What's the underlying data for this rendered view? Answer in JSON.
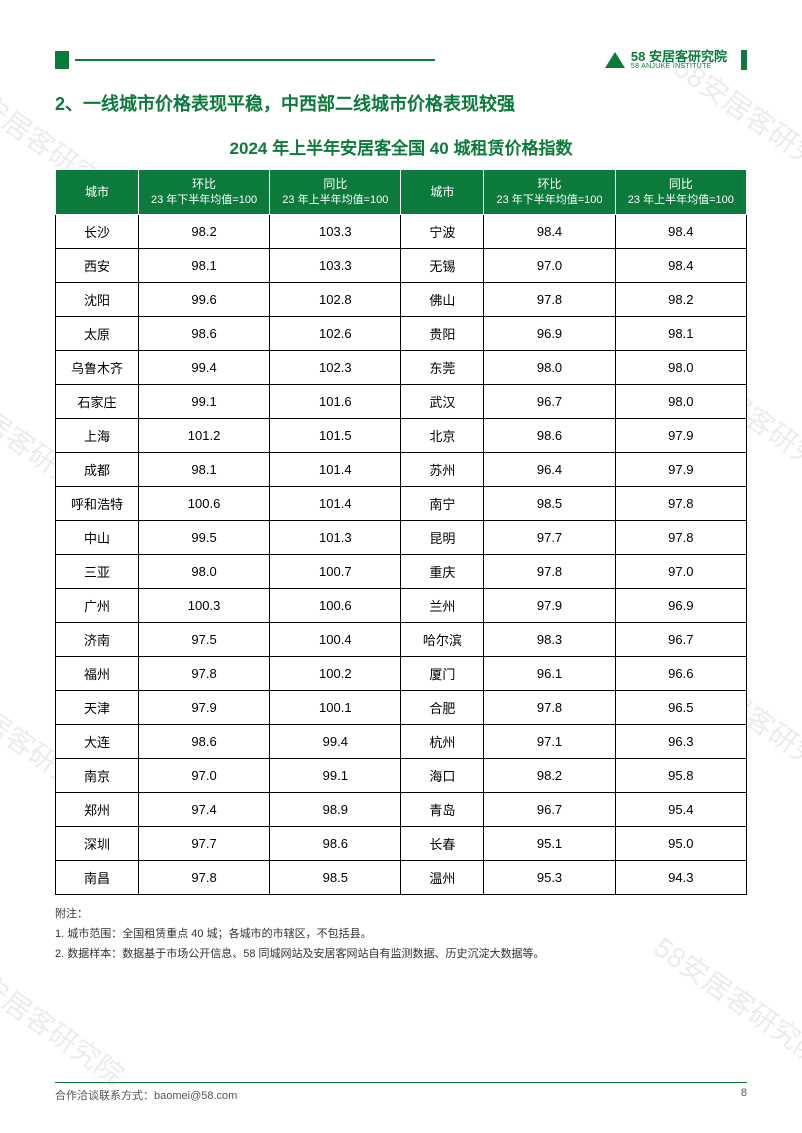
{
  "header": {
    "logo_cn": "58 安居客研究院",
    "logo_en": "58 ANJUKE INSTITUTE"
  },
  "section_title": "2、一线城市价格表现平稳，中西部二线城市价格表现较强",
  "table_title": "2024 年上半年安居客全国 40 城租赁价格指数",
  "columns": {
    "city": "城市",
    "mom_label": "环比",
    "mom_sub": "23 年下半年均值=100",
    "yoy_label": "同比",
    "yoy_sub": "23 年上半年均值=100"
  },
  "rows_left": [
    {
      "city": "长沙",
      "mom": "98.2",
      "yoy": "103.3"
    },
    {
      "city": "西安",
      "mom": "98.1",
      "yoy": "103.3"
    },
    {
      "city": "沈阳",
      "mom": "99.6",
      "yoy": "102.8"
    },
    {
      "city": "太原",
      "mom": "98.6",
      "yoy": "102.6"
    },
    {
      "city": "乌鲁木齐",
      "mom": "99.4",
      "yoy": "102.3"
    },
    {
      "city": "石家庄",
      "mom": "99.1",
      "yoy": "101.6"
    },
    {
      "city": "上海",
      "mom": "101.2",
      "yoy": "101.5"
    },
    {
      "city": "成都",
      "mom": "98.1",
      "yoy": "101.4"
    },
    {
      "city": "呼和浩特",
      "mom": "100.6",
      "yoy": "101.4"
    },
    {
      "city": "中山",
      "mom": "99.5",
      "yoy": "101.3"
    },
    {
      "city": "三亚",
      "mom": "98.0",
      "yoy": "100.7"
    },
    {
      "city": "广州",
      "mom": "100.3",
      "yoy": "100.6"
    },
    {
      "city": "济南",
      "mom": "97.5",
      "yoy": "100.4"
    },
    {
      "city": "福州",
      "mom": "97.8",
      "yoy": "100.2"
    },
    {
      "city": "天津",
      "mom": "97.9",
      "yoy": "100.1"
    },
    {
      "city": "大连",
      "mom": "98.6",
      "yoy": "99.4"
    },
    {
      "city": "南京",
      "mom": "97.0",
      "yoy": "99.1"
    },
    {
      "city": "郑州",
      "mom": "97.4",
      "yoy": "98.9"
    },
    {
      "city": "深圳",
      "mom": "97.7",
      "yoy": "98.6"
    },
    {
      "city": "南昌",
      "mom": "97.8",
      "yoy": "98.5"
    }
  ],
  "rows_right": [
    {
      "city": "宁波",
      "mom": "98.4",
      "yoy": "98.4"
    },
    {
      "city": "无锡",
      "mom": "97.0",
      "yoy": "98.4"
    },
    {
      "city": "佛山",
      "mom": "97.8",
      "yoy": "98.2"
    },
    {
      "city": "贵阳",
      "mom": "96.9",
      "yoy": "98.1"
    },
    {
      "city": "东莞",
      "mom": "98.0",
      "yoy": "98.0"
    },
    {
      "city": "武汉",
      "mom": "96.7",
      "yoy": "98.0"
    },
    {
      "city": "北京",
      "mom": "98.6",
      "yoy": "97.9"
    },
    {
      "city": "苏州",
      "mom": "96.4",
      "yoy": "97.9"
    },
    {
      "city": "南宁",
      "mom": "98.5",
      "yoy": "97.8"
    },
    {
      "city": "昆明",
      "mom": "97.7",
      "yoy": "97.8"
    },
    {
      "city": "重庆",
      "mom": "97.8",
      "yoy": "97.0"
    },
    {
      "city": "兰州",
      "mom": "97.9",
      "yoy": "96.9"
    },
    {
      "city": "哈尔滨",
      "mom": "98.3",
      "yoy": "96.7"
    },
    {
      "city": "厦门",
      "mom": "96.1",
      "yoy": "96.6"
    },
    {
      "city": "合肥",
      "mom": "97.8",
      "yoy": "96.5"
    },
    {
      "city": "杭州",
      "mom": "97.1",
      "yoy": "96.3"
    },
    {
      "city": "海口",
      "mom": "98.2",
      "yoy": "95.8"
    },
    {
      "city": "青岛",
      "mom": "96.7",
      "yoy": "95.4"
    },
    {
      "city": "长春",
      "mom": "95.1",
      "yoy": "95.0"
    },
    {
      "city": "温州",
      "mom": "95.3",
      "yoy": "94.3"
    }
  ],
  "notes": {
    "heading": "附注：",
    "line1": "1. 城市范围：全国租赁重点 40 城；各城市的市辖区，不包括县。",
    "line2": "2. 数据样本：数据基于市场公开信息、58 同城网站及安居客网站自有监测数据、历史沉淀大数据等。"
  },
  "footer": {
    "contact": "合作洽谈联系方式：baomei@58.com",
    "page_number": "8"
  },
  "watermark_text": "58安居客研究院",
  "colors": {
    "brand_green": "#0b7a3b",
    "text": "#333333",
    "border": "#000000",
    "bg": "#ffffff"
  }
}
